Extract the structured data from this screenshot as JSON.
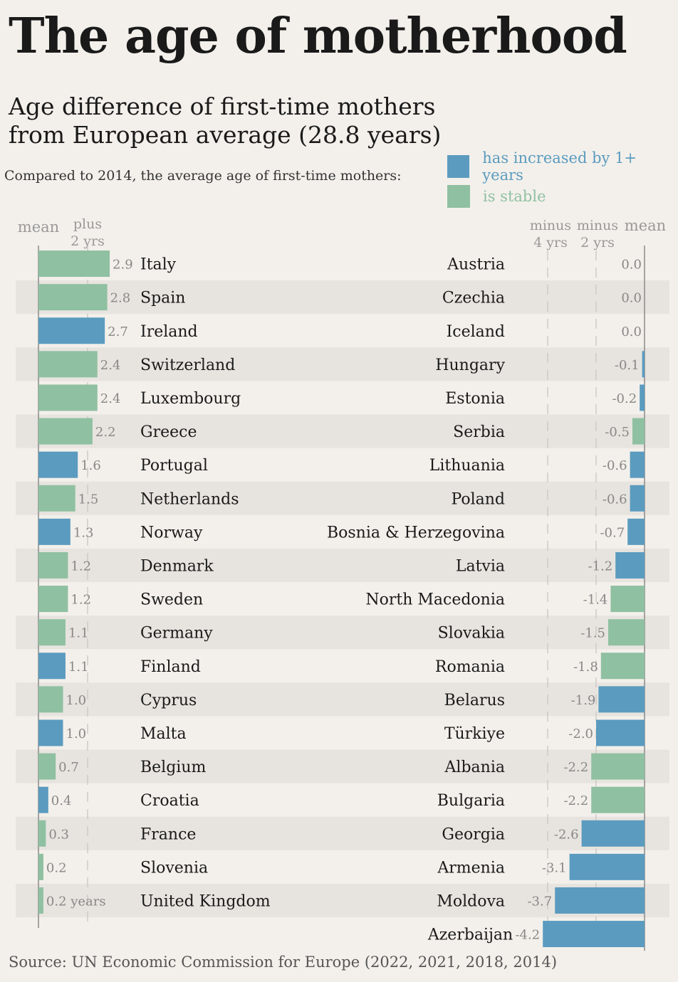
{
  "title": "The age of motherhood",
  "subtitle_line1": "Age difference of first-time mothers",
  "subtitle_line2": "from European average (28.8 years)",
  "note": "Compared to 2014, the average age of first-time mothers:",
  "legend": {
    "increased": "has increased by 1+ years",
    "stable": "is stable"
  },
  "colors": {
    "increased": "#5b9bbf",
    "stable": "#8fc0a1",
    "stripe": "#e7e4df",
    "grid": "#c9c6c1"
  },
  "source": "Source: UN Economic Commission for Europe (2022, 2021, 2018, 2014)",
  "chart_data": {
    "type": "bar",
    "axis_labels": {
      "left_mean": "mean",
      "left_plus_1": "plus",
      "left_plus_2": "2 yrs",
      "right_minus4_1": "minus",
      "right_minus4_2": "4 yrs",
      "right_minus2_1": "minus",
      "right_minus2_2": "2 yrs",
      "right_mean": "mean"
    },
    "units_suffix": " years",
    "above_average": [
      {
        "country": "Italy",
        "value": 2.9,
        "label": "2.9",
        "status": "stable"
      },
      {
        "country": "Spain",
        "value": 2.8,
        "label": "2.8",
        "status": "stable"
      },
      {
        "country": "Ireland",
        "value": 2.7,
        "label": "2.7",
        "status": "increased"
      },
      {
        "country": "Switzerland",
        "value": 2.4,
        "label": "2.4",
        "status": "stable"
      },
      {
        "country": "Luxembourg",
        "value": 2.4,
        "label": "2.4",
        "status": "stable"
      },
      {
        "country": "Greece",
        "value": 2.2,
        "label": "2.2",
        "status": "stable"
      },
      {
        "country": "Portugal",
        "value": 1.6,
        "label": "1.6",
        "status": "increased"
      },
      {
        "country": "Netherlands",
        "value": 1.5,
        "label": "1.5",
        "status": "stable"
      },
      {
        "country": "Norway",
        "value": 1.3,
        "label": "1.3",
        "status": "increased"
      },
      {
        "country": "Denmark",
        "value": 1.2,
        "label": "1.2",
        "status": "stable"
      },
      {
        "country": "Sweden",
        "value": 1.2,
        "label": "1.2",
        "status": "stable"
      },
      {
        "country": "Germany",
        "value": 1.1,
        "label": "1.1",
        "status": "stable"
      },
      {
        "country": "Finland",
        "value": 1.1,
        "label": "1.1",
        "status": "increased"
      },
      {
        "country": "Cyprus",
        "value": 1.0,
        "label": "1.0",
        "status": "stable"
      },
      {
        "country": "Malta",
        "value": 1.0,
        "label": "1.0",
        "status": "increased"
      },
      {
        "country": "Belgium",
        "value": 0.7,
        "label": "0.7",
        "status": "stable"
      },
      {
        "country": "Croatia",
        "value": 0.4,
        "label": "0.4",
        "status": "increased"
      },
      {
        "country": "France",
        "value": 0.3,
        "label": "0.3",
        "status": "stable"
      },
      {
        "country": "Slovenia",
        "value": 0.2,
        "label": "0.2",
        "status": "stable"
      },
      {
        "country": "United Kingdom",
        "value": 0.2,
        "label": "0.2",
        "status": "stable"
      }
    ],
    "below_average": [
      {
        "country": "Austria",
        "value": 0.0,
        "label": "0.0",
        "status": "stable"
      },
      {
        "country": "Czechia",
        "value": 0.0,
        "label": "0.0",
        "status": "stable"
      },
      {
        "country": "Iceland",
        "value": 0.0,
        "label": "0.0",
        "status": "stable"
      },
      {
        "country": "Hungary",
        "value": -0.1,
        "label": "-0.1",
        "status": "increased"
      },
      {
        "country": "Estonia",
        "value": -0.2,
        "label": "-0.2",
        "status": "increased"
      },
      {
        "country": "Serbia",
        "value": -0.5,
        "label": "-0.5",
        "status": "stable"
      },
      {
        "country": "Lithuania",
        "value": -0.6,
        "label": "-0.6",
        "status": "increased"
      },
      {
        "country": "Poland",
        "value": -0.6,
        "label": "-0.6",
        "status": "increased"
      },
      {
        "country": "Bosnia & Herzegovina",
        "value": -0.7,
        "label": "-0.7",
        "status": "increased"
      },
      {
        "country": "Latvia",
        "value": -1.2,
        "label": "-1.2",
        "status": "increased"
      },
      {
        "country": "North Macedonia",
        "value": -1.4,
        "label": "-1.4",
        "status": "stable"
      },
      {
        "country": "Slovakia",
        "value": -1.5,
        "label": "-1.5",
        "status": "stable"
      },
      {
        "country": "Romania",
        "value": -1.8,
        "label": "-1.8",
        "status": "stable"
      },
      {
        "country": "Belarus",
        "value": -1.9,
        "label": "-1.9",
        "status": "increased"
      },
      {
        "country": "Türkiye",
        "value": -2.0,
        "label": "-2.0",
        "status": "increased"
      },
      {
        "country": "Albania",
        "value": -2.2,
        "label": "-2.2",
        "status": "stable"
      },
      {
        "country": "Bulgaria",
        "value": -2.2,
        "label": "-2.2",
        "status": "stable"
      },
      {
        "country": "Georgia",
        "value": -2.6,
        "label": "-2.6",
        "status": "increased"
      },
      {
        "country": "Armenia",
        "value": -3.1,
        "label": "-3.1",
        "status": "increased"
      },
      {
        "country": "Moldova",
        "value": -3.7,
        "label": "-3.7",
        "status": "increased"
      },
      {
        "country": "Azerbaijan",
        "value": -4.2,
        "label": "-4.2",
        "status": "increased"
      }
    ]
  }
}
